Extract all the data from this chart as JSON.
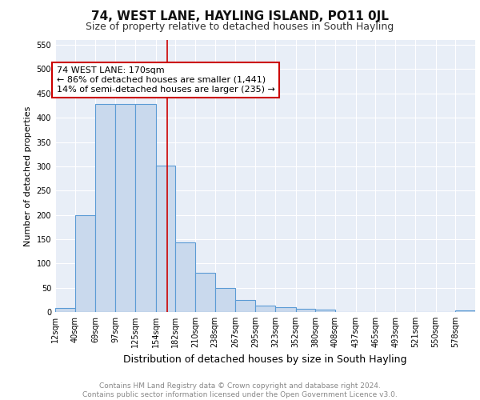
{
  "title": "74, WEST LANE, HAYLING ISLAND, PO11 0JL",
  "subtitle": "Size of property relative to detached houses in South Hayling",
  "xlabel": "Distribution of detached houses by size in South Hayling",
  "ylabel": "Number of detached properties",
  "categories": [
    "12sqm",
    "40sqm",
    "69sqm",
    "97sqm",
    "125sqm",
    "154sqm",
    "182sqm",
    "210sqm",
    "238sqm",
    "267sqm",
    "295sqm",
    "323sqm",
    "352sqm",
    "380sqm",
    "408sqm",
    "437sqm",
    "465sqm",
    "493sqm",
    "521sqm",
    "550sqm",
    "578sqm"
  ],
  "values": [
    8,
    200,
    428,
    428,
    428,
    302,
    143,
    80,
    50,
    25,
    13,
    10,
    7,
    5,
    0,
    0,
    0,
    0,
    0,
    0,
    3
  ],
  "bar_color": "#c9d9ed",
  "bar_edge_color": "#5b9bd5",
  "background_color": "#e8eef7",
  "grid_color": "#ffffff",
  "annotation_text": "74 WEST LANE: 170sqm\n← 86% of detached houses are smaller (1,441)\n14% of semi-detached houses are larger (235) →",
  "annotation_box_color": "#ffffff",
  "annotation_border_color": "#cc0000",
  "vline_x": 170,
  "vline_color": "#cc0000",
  "ylim": [
    0,
    560
  ],
  "yticks": [
    0,
    50,
    100,
    150,
    200,
    250,
    300,
    350,
    400,
    450,
    500,
    550
  ],
  "footer_text": "Contains HM Land Registry data © Crown copyright and database right 2024.\nContains public sector information licensed under the Open Government Licence v3.0.",
  "title_fontsize": 11,
  "subtitle_fontsize": 9,
  "xlabel_fontsize": 9,
  "ylabel_fontsize": 8,
  "tick_fontsize": 7,
  "annotation_fontsize": 8,
  "footer_fontsize": 6.5
}
